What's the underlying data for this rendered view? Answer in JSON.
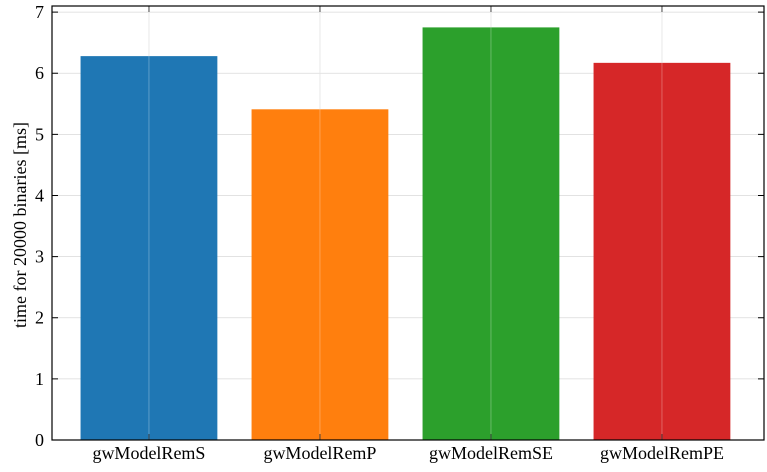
{
  "chart_data": {
    "type": "bar",
    "y_label": "time for 20000 binaries [ms]",
    "categories": [
      "gwModelRemS",
      "gwModelRemP",
      "gwModelRemSE",
      "gwModelRemPE"
    ],
    "values": [
      6.28,
      5.41,
      6.75,
      6.17
    ],
    "colors": [
      "#1f77b4",
      "#ff7f0e",
      "#2ca02c",
      "#d62728"
    ],
    "ylim": [
      0,
      7.1
    ],
    "yticks": [
      0,
      1,
      2,
      3,
      4,
      5,
      6,
      7
    ],
    "grid": true
  }
}
